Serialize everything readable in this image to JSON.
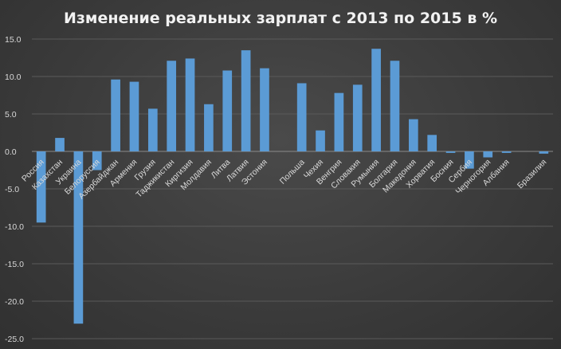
{
  "chart_data": {
    "type": "bar",
    "title": "Изменение реальных зарплат с 2013 по 2015 в %",
    "xlabel": "",
    "ylabel": "",
    "ylim": [
      -25,
      15
    ],
    "yticks": [
      "15.0",
      "10.0",
      "5.0",
      "0.0",
      "-5.0",
      "-10.0",
      "-15.0",
      "-20.0",
      "-25.0"
    ],
    "grid": true,
    "legend": "none",
    "bar_color": "#5b9bd5",
    "categories": [
      "Россия",
      "Казахстан",
      "Украина",
      "Белоруссия",
      "Азербайджан",
      "Армения",
      "Грузия",
      "Таджикистан",
      "Киргизия",
      "Молдавия",
      "Литва",
      "Латвия",
      "Эстония",
      "",
      "Польша",
      "Чехия",
      "Венгрия",
      "Словакия",
      "Румыния",
      "Болгария",
      "Македония",
      "Хорватия",
      "Босния",
      "Сербия",
      "Черногория",
      "Албания",
      "",
      "Бразилия"
    ],
    "values": [
      -9.5,
      1.8,
      -23.0,
      -2.5,
      9.6,
      9.3,
      5.7,
      12.1,
      12.4,
      6.3,
      10.8,
      13.5,
      11.1,
      null,
      9.1,
      2.8,
      7.8,
      8.9,
      13.7,
      12.1,
      4.3,
      2.2,
      -0.2,
      -2.3,
      -0.8,
      -0.2,
      null,
      -0.3
    ]
  }
}
